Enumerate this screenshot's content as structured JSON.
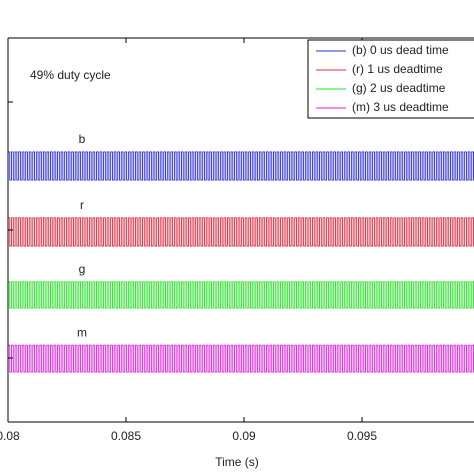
{
  "chart_data": {
    "type": "band-wave",
    "annotation": "49% duty cycle",
    "x_label": "Time (s)",
    "xlim": [
      0.08,
      0.1
    ],
    "xticks": [
      {
        "value": 0.08,
        "label": "0.08"
      },
      0.085,
      0.09,
      0.095
    ],
    "ylim": [
      1,
      7
    ],
    "yticks": [
      2,
      4,
      6
    ],
    "period": 0.00015,
    "series": [
      {
        "name": "(b) 0 us dead time",
        "label": "b",
        "color": "#2b2bd6",
        "values": [
          4.78,
          5.22
        ]
      },
      {
        "name": "(r) 1 us deadtime",
        "label": "r",
        "color": "#e0283c",
        "values": [
          3.75,
          4.19
        ]
      },
      {
        "name": "(g) 2 us deadtime",
        "label": "g",
        "color": "#1ee61e",
        "values": [
          2.78,
          3.19
        ]
      },
      {
        "name": "(m) 3 us deadtime",
        "label": "m",
        "color": "#e01ee0",
        "values": [
          1.78,
          2.2
        ]
      }
    ]
  }
}
